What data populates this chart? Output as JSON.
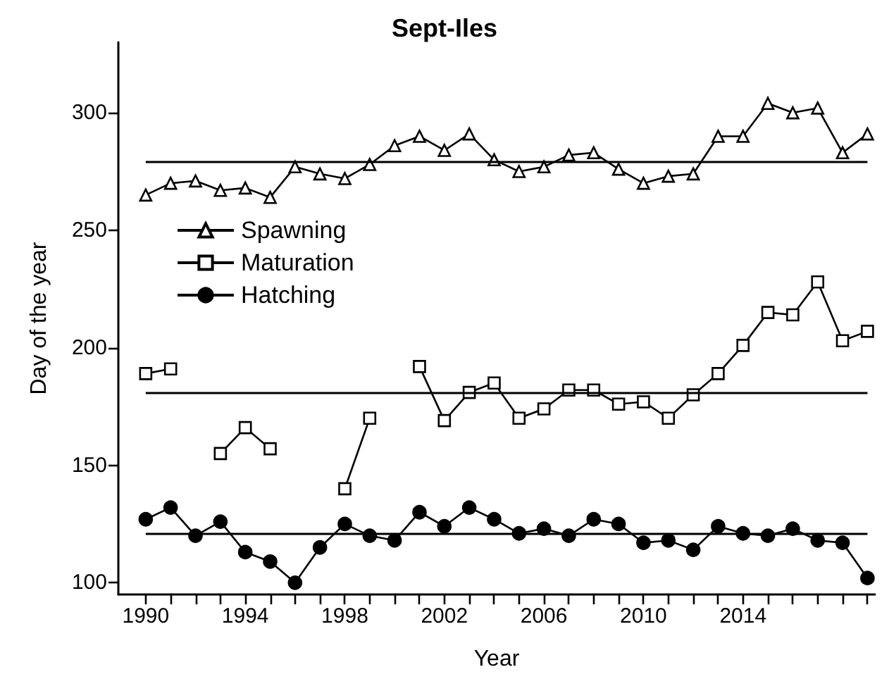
{
  "chart_data": {
    "type": "line",
    "title": "Sept-Iles",
    "xlabel": "Year",
    "ylabel": "Day of the year",
    "x": [
      1990,
      1991,
      1992,
      1993,
      1994,
      1995,
      1996,
      1997,
      1998,
      1999,
      2000,
      2001,
      2002,
      2003,
      2004,
      2005,
      2006,
      2007,
      2008,
      2009,
      2010,
      2011,
      2012,
      2013,
      2014,
      2015,
      2016,
      2017,
      2018,
      2019
    ],
    "series": [
      {
        "name": "Spawning",
        "color": "#000000",
        "marker": "triangle",
        "values": [
          265,
          270,
          271,
          267,
          268,
          264,
          277,
          274,
          272,
          278,
          286,
          290,
          284,
          291,
          280,
          275,
          277,
          282,
          283,
          276,
          270,
          273,
          274,
          290,
          290,
          304,
          300,
          302,
          283,
          291
        ]
      },
      {
        "name": "Maturation",
        "color": "#000000",
        "marker": "square",
        "values": [
          189,
          191,
          null,
          155,
          166,
          157,
          null,
          null,
          140,
          170,
          null,
          192,
          169,
          181,
          185,
          170,
          174,
          182,
          182,
          176,
          177,
          170,
          180,
          189,
          201,
          215,
          214,
          228,
          203,
          207
        ]
      },
      {
        "name": "Hatching",
        "color": "#000000",
        "marker": "circle",
        "values": [
          127,
          132,
          120,
          126,
          113,
          109,
          100,
          115,
          125,
          120,
          118,
          130,
          124,
          132,
          127,
          121,
          123,
          120,
          127,
          125,
          117,
          118,
          114,
          124,
          121,
          120,
          123,
          118,
          117,
          102
        ]
      }
    ],
    "ref_lines": [
      {
        "axis": "y",
        "value": 279,
        "color": "#000000"
      },
      {
        "axis": "y",
        "value": 181,
        "color": "#000000"
      },
      {
        "axis": "y",
        "value": 121,
        "color": "#000000"
      }
    ],
    "xlim": [
      1988.9,
      2019.3
    ],
    "xticks": [
      1990,
      {
        "value": 1991,
        "label": null
      },
      {
        "value": 1992,
        "label": null
      },
      {
        "value": 1993,
        "label": null
      },
      1994,
      {
        "value": 1995,
        "label": null
      },
      {
        "value": 1996,
        "label": null
      },
      {
        "value": 1997,
        "label": null
      },
      1998,
      {
        "value": 1999,
        "label": null
      },
      {
        "value": 2000,
        "label": null
      },
      {
        "value": 2001,
        "label": null
      },
      2002,
      {
        "value": 2003,
        "label": null
      },
      {
        "value": 2004,
        "label": null
      },
      {
        "value": 2005,
        "label": null
      },
      2006,
      {
        "value": 2007,
        "label": null
      },
      {
        "value": 2008,
        "label": null
      },
      {
        "value": 2009,
        "label": null
      },
      2010,
      {
        "value": 2011,
        "label": null
      },
      {
        "value": 2012,
        "label": null
      },
      {
        "value": 2013,
        "label": null
      },
      2014,
      {
        "value": 2015,
        "label": null
      },
      {
        "value": 2016,
        "label": null
      },
      {
        "value": 2017,
        "label": null
      },
      {
        "value": 2018,
        "label": null
      },
      {
        "value": 2019,
        "label": null
      }
    ],
    "ylim": [
      95,
      330
    ],
    "yticks": [
      100,
      150,
      200,
      250,
      300
    ],
    "grid": false,
    "legend": "top left",
    "line_style": "solid"
  }
}
